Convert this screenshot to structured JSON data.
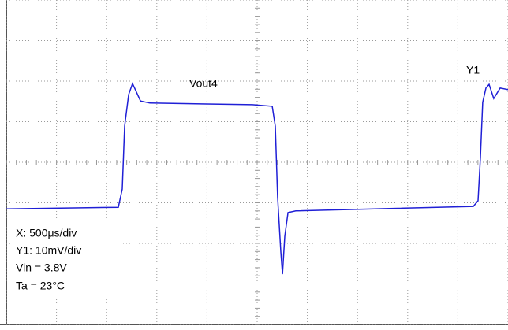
{
  "chart_data": {
    "type": "line",
    "annotations": [
      "Vout4",
      "Y1"
    ],
    "info": [
      "X: 500μs/div",
      "Y1: 10mV/div",
      "Vin = 3.8V",
      "Ta = 23°C"
    ],
    "x": [
      0,
      1116,
      1156,
      1179,
      1219,
      1258,
      1289,
      1337,
      1431,
      2453,
      2650,
      2681,
      2704,
      2736,
      2752,
      2775,
      2807,
      2885,
      4654,
      4701,
      4725,
      4748,
      4780,
      4811,
      4858,
      4921,
      5000
    ],
    "series": [
      {
        "name": "Vout4",
        "color": "#1f1fd6",
        "values": [
          -11.5,
          -11.1,
          -6.6,
          8.9,
          16.7,
          19.4,
          17.7,
          15.1,
          14.6,
          14.2,
          13.8,
          8.9,
          -8.5,
          -22.1,
          -27.6,
          -18.3,
          -12.4,
          -12.0,
          -10.9,
          -9.5,
          1.2,
          14.8,
          18.3,
          19.2,
          15.7,
          18.3,
          17.9
        ]
      }
    ],
    "xlim": [
      0,
      5000
    ],
    "xticks": [
      0,
      500,
      1000,
      1500,
      2000,
      2500,
      3000,
      3500,
      4000,
      4500,
      5000
    ],
    "ylim": [
      -40,
      40
    ],
    "yticks": [
      -40,
      -30,
      -20,
      -10,
      0,
      10,
      20,
      30,
      40
    ],
    "grid": true
  }
}
